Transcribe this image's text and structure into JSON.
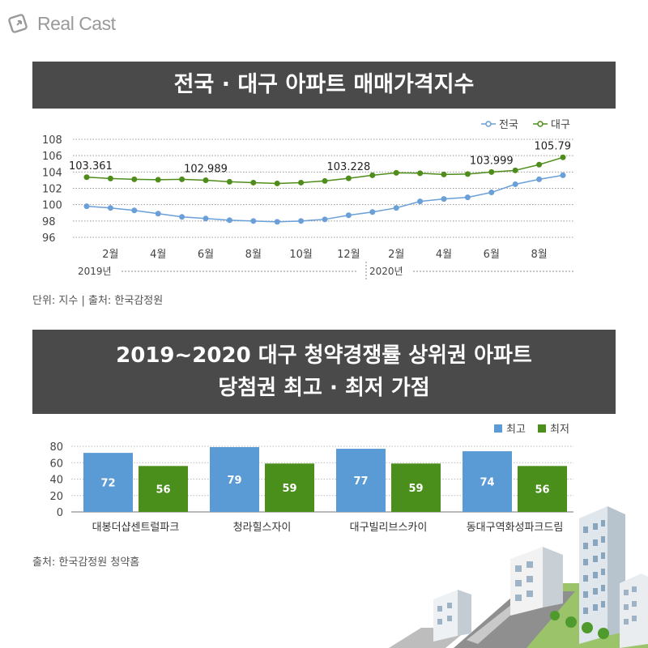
{
  "brand": {
    "logo_text": "Real Cast"
  },
  "section1": {
    "title": "전국 · 대구 아파트 매매가격지수",
    "note": "단위: 지수 | 출처: 한국감정원"
  },
  "section2": {
    "title_line1": "2019~2020 대구 청약경쟁률 상위권 아파트",
    "title_line2": "당첨권 최고 · 최저 가점",
    "note": "출처: 한국감정원 청약홈"
  },
  "colors": {
    "national": "#6a9fd8",
    "daegu": "#4e8d1a",
    "bar_max": "#5b9bd5",
    "bar_min": "#4a8f1b",
    "banner": "#4a4a4a"
  },
  "chart_data": [
    {
      "type": "line",
      "title": "전국 · 대구 아파트 매매가격지수",
      "ylim": [
        96,
        108
      ],
      "yticks": [
        96,
        98,
        100,
        102,
        104,
        106,
        108
      ],
      "x_tick_labels": [
        {
          "index": 1,
          "label": "2월"
        },
        {
          "index": 3,
          "label": "4월"
        },
        {
          "index": 5,
          "label": "6월"
        },
        {
          "index": 7,
          "label": "8월"
        },
        {
          "index": 9,
          "label": "10월"
        },
        {
          "index": 11,
          "label": "12월"
        },
        {
          "index": 13,
          "label": "2월"
        },
        {
          "index": 15,
          "label": "4월"
        },
        {
          "index": 17,
          "label": "6월"
        },
        {
          "index": 19,
          "label": "8월"
        }
      ],
      "year_labels": [
        "2019년",
        "2020년"
      ],
      "legend": [
        "전국",
        "대구"
      ],
      "legend_position": "top-right",
      "series": [
        {
          "name": "전국",
          "values": [
            99.8,
            99.6,
            99.3,
            98.9,
            98.5,
            98.3,
            98.1,
            98.0,
            97.9,
            98.0,
            98.2,
            98.7,
            99.1,
            99.6,
            100.4,
            100.7,
            100.9,
            101.5,
            102.5,
            103.1,
            103.6
          ]
        },
        {
          "name": "대구",
          "values": [
            103.361,
            103.2,
            103.1,
            103.05,
            103.1,
            102.989,
            102.8,
            102.7,
            102.6,
            102.7,
            102.9,
            103.228,
            103.6,
            103.9,
            103.85,
            103.7,
            103.75,
            103.999,
            104.2,
            104.9,
            105.79
          ]
        }
      ],
      "data_labels": [
        {
          "series": "대구",
          "index": 0,
          "text": "103.361"
        },
        {
          "series": "대구",
          "index": 5,
          "text": "102.989"
        },
        {
          "series": "대구",
          "index": 11,
          "text": "103.228"
        },
        {
          "series": "대구",
          "index": 17,
          "text": "103.999"
        },
        {
          "series": "대구",
          "index": 20,
          "text": "105.79"
        }
      ]
    },
    {
      "type": "bar",
      "title": "2019~2020 대구 청약경쟁률 상위권 아파트 당첨권 최고 · 최저 가점",
      "categories": [
        "대봉더샵센트럴파크",
        "청라힐스자이",
        "대구빌리브스카이",
        "동대구역화성파크드림"
      ],
      "series": [
        {
          "name": "최고",
          "values": [
            72,
            79,
            77,
            74
          ]
        },
        {
          "name": "최저",
          "values": [
            56,
            59,
            59,
            56
          ]
        }
      ],
      "ylim": [
        0,
        80
      ],
      "yticks": [
        0,
        20,
        40,
        60,
        80
      ],
      "legend": [
        "최고",
        "최저"
      ],
      "legend_position": "top-right"
    }
  ]
}
